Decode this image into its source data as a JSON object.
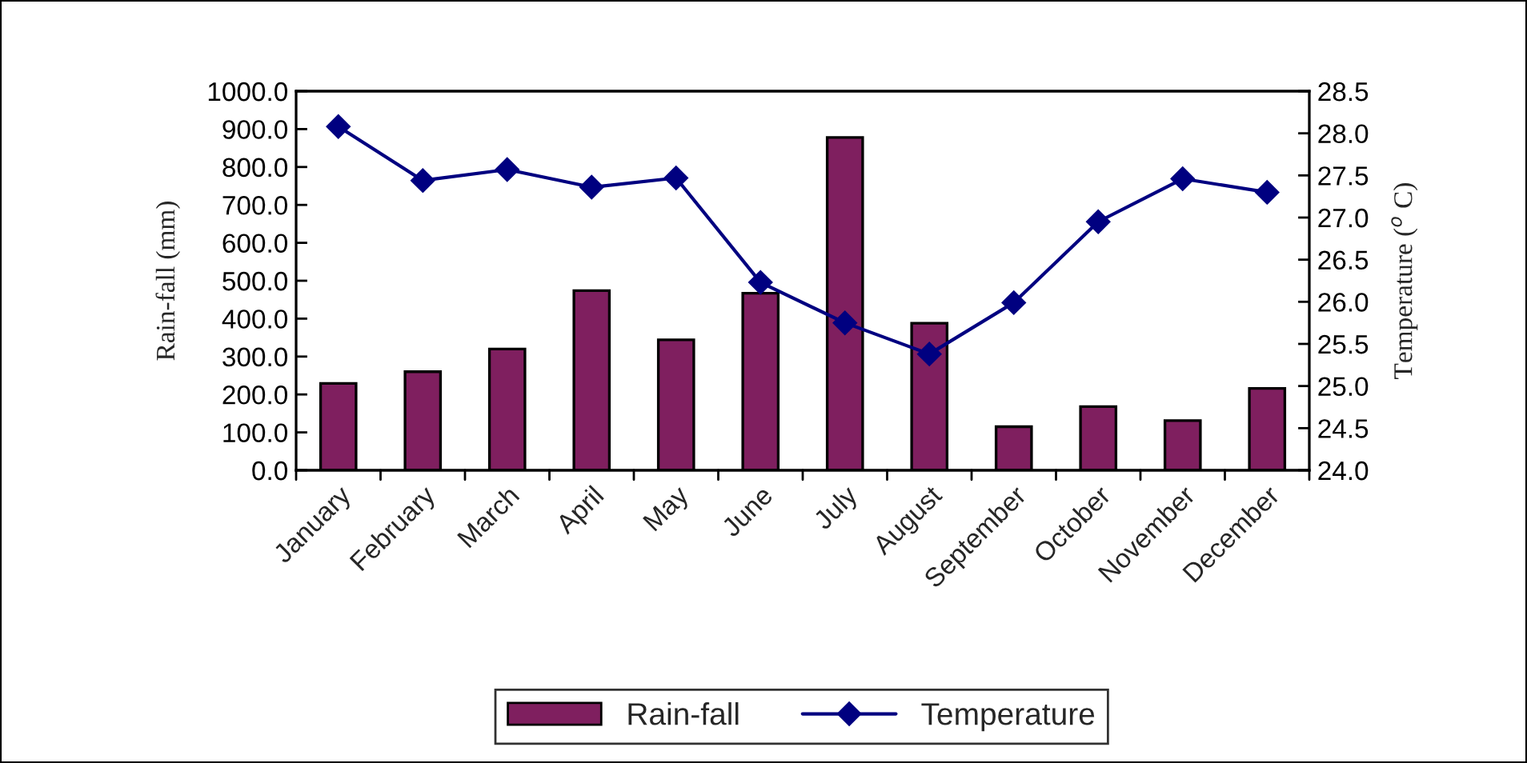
{
  "chart_data": {
    "type": "bar",
    "ylabel": "Rain-fall (mm)",
    "y2label": "Temperature ($^{o}$ C)",
    "categories": [
      "January",
      "February",
      "March",
      "April",
      "May",
      "June",
      "July",
      "August",
      "September",
      "October",
      "November",
      "December"
    ],
    "series": [
      {
        "name": "Rain-fall",
        "color": "#7f1f5f",
        "values": [
          229,
          260,
          320,
          474,
          344,
          467,
          878,
          388,
          115,
          168,
          131,
          216
        ]
      },
      {
        "name": "Temperature",
        "type": "line",
        "axis": "y2",
        "color": "#000080",
        "marker": "diamond",
        "values": [
          28.08,
          27.44,
          27.57,
          27.36,
          27.47,
          26.23,
          25.75,
          25.38,
          25.99,
          26.95,
          27.46,
          27.3
        ]
      }
    ],
    "ylim": [
      0,
      1000
    ],
    "yticks": [
      {
        "value": 0,
        "label": "0.0"
      },
      {
        "value": 100,
        "label": "100.0"
      },
      {
        "value": 200,
        "label": "200.0"
      },
      {
        "value": 300,
        "label": "300.0"
      },
      {
        "value": 400,
        "label": "400.0"
      },
      {
        "value": 500,
        "label": "500.0"
      },
      {
        "value": 600,
        "label": "600.0"
      },
      {
        "value": 700,
        "label": "700.0"
      },
      {
        "value": 800,
        "label": "800.0"
      },
      {
        "value": 900,
        "label": "900.0"
      },
      {
        "value": 1000,
        "label": "1000.0"
      }
    ],
    "y2lim": [
      24,
      28.5
    ],
    "y2ticks": [
      {
        "value": 24,
        "label": "24.0"
      },
      {
        "value": 24.5,
        "label": "24.5"
      },
      {
        "value": 25,
        "label": "25.0"
      },
      {
        "value": 25.5,
        "label": "25.5"
      },
      {
        "value": 26,
        "label": "26.0"
      },
      {
        "value": 26.5,
        "label": "26.5"
      },
      {
        "value": 27,
        "label": "27.0"
      },
      {
        "value": 27.5,
        "label": "27.5"
      },
      {
        "value": 28,
        "label": "28.0"
      },
      {
        "value": 28.5,
        "label": "28.5"
      }
    ],
    "grid": false,
    "legend": "bottom"
  }
}
